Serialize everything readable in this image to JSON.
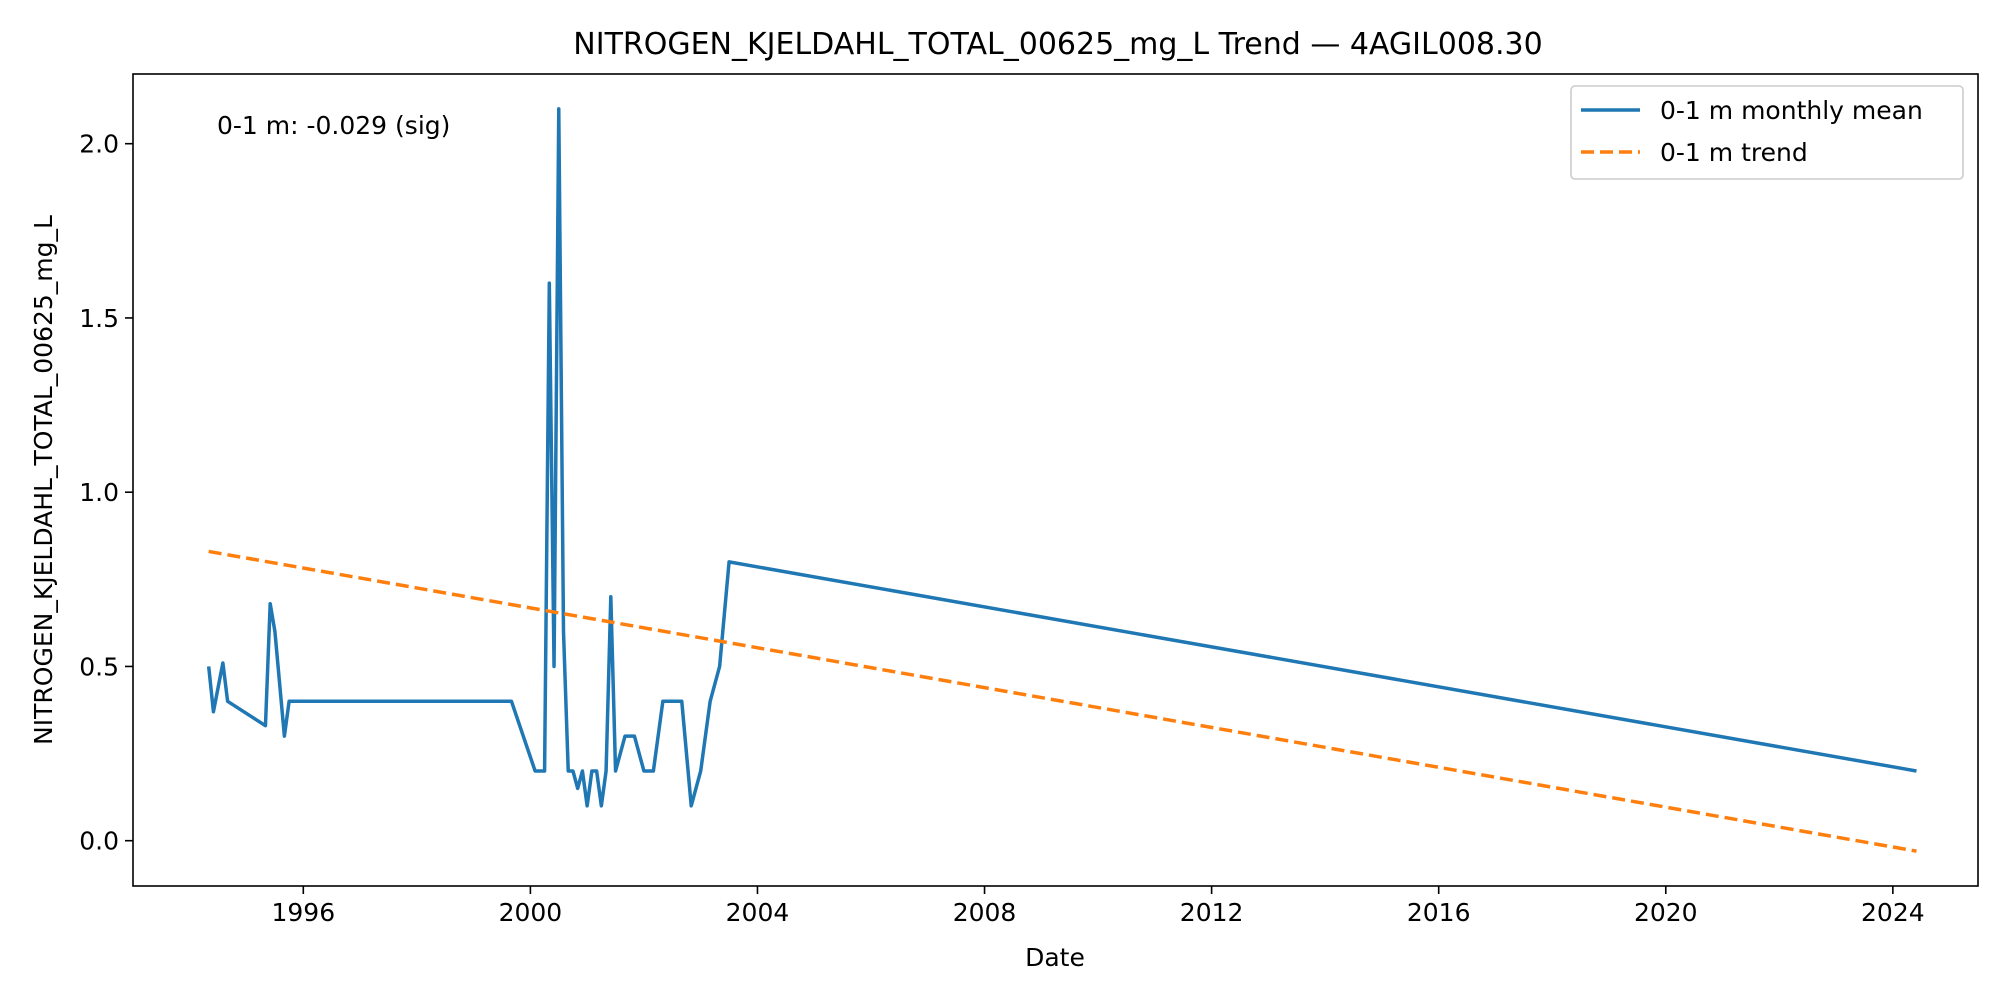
{
  "chart_data": {
    "type": "line",
    "title": "NITROGEN_KJELDAHL_TOTAL_00625_mg_L Trend — 4AGIL008.30",
    "xlabel": "Date",
    "ylabel": "NITROGEN_KJELDAHL_TOTAL_00625_mg_L",
    "x_type": "date",
    "xlim": [
      "1993-01-01",
      "2025-07-01"
    ],
    "ylim": [
      -0.13,
      2.2
    ],
    "x_ticks": [
      "1996",
      "2000",
      "2004",
      "2008",
      "2012",
      "2016",
      "2020",
      "2024"
    ],
    "y_ticks": [
      "0.0",
      "0.5",
      "1.0",
      "1.5",
      "2.0"
    ],
    "grid": false,
    "legend_position": "top-right",
    "annotation": "0-1 m: -0.029 (sig)",
    "series": [
      {
        "name": "0-1 m monthly mean",
        "style": "solid",
        "color": "#1f77b4",
        "points": [
          [
            "1994-05-01",
            0.5
          ],
          [
            "1994-06-01",
            0.37
          ],
          [
            "1994-08-01",
            0.51
          ],
          [
            "1994-09-01",
            0.4
          ],
          [
            "1995-05-01",
            0.33
          ],
          [
            "1995-06-01",
            0.68
          ],
          [
            "1995-07-01",
            0.6
          ],
          [
            "1995-09-01",
            0.3
          ],
          [
            "1995-10-01",
            0.4
          ],
          [
            "1999-09-01",
            0.4
          ],
          [
            "2000-02-01",
            0.2
          ],
          [
            "2000-04-01",
            0.2
          ],
          [
            "2000-05-01",
            1.6
          ],
          [
            "2000-06-01",
            0.5
          ],
          [
            "2000-07-01",
            2.1
          ],
          [
            "2000-08-01",
            0.6
          ],
          [
            "2000-09-01",
            0.2
          ],
          [
            "2000-10-01",
            0.2
          ],
          [
            "2000-11-01",
            0.15
          ],
          [
            "2000-12-01",
            0.2
          ],
          [
            "2001-01-01",
            0.1
          ],
          [
            "2001-02-01",
            0.2
          ],
          [
            "2001-03-01",
            0.2
          ],
          [
            "2001-04-01",
            0.1
          ],
          [
            "2001-05-01",
            0.2
          ],
          [
            "2001-06-01",
            0.7
          ],
          [
            "2001-07-01",
            0.2
          ],
          [
            "2001-09-01",
            0.3
          ],
          [
            "2001-11-01",
            0.3
          ],
          [
            "2002-01-01",
            0.2
          ],
          [
            "2002-03-01",
            0.2
          ],
          [
            "2002-05-01",
            0.4
          ],
          [
            "2002-07-01",
            0.4
          ],
          [
            "2002-09-01",
            0.4
          ],
          [
            "2002-11-01",
            0.1
          ],
          [
            "2003-01-01",
            0.2
          ],
          [
            "2003-03-01",
            0.4
          ],
          [
            "2003-05-01",
            0.5
          ],
          [
            "2003-07-01",
            0.8
          ],
          [
            "2024-06-01",
            0.2
          ]
        ]
      },
      {
        "name": "0-1 m trend",
        "style": "dashed",
        "color": "#ff7f0e",
        "points": [
          [
            "1994-05-01",
            0.83
          ],
          [
            "2024-06-01",
            -0.03
          ]
        ]
      }
    ]
  }
}
